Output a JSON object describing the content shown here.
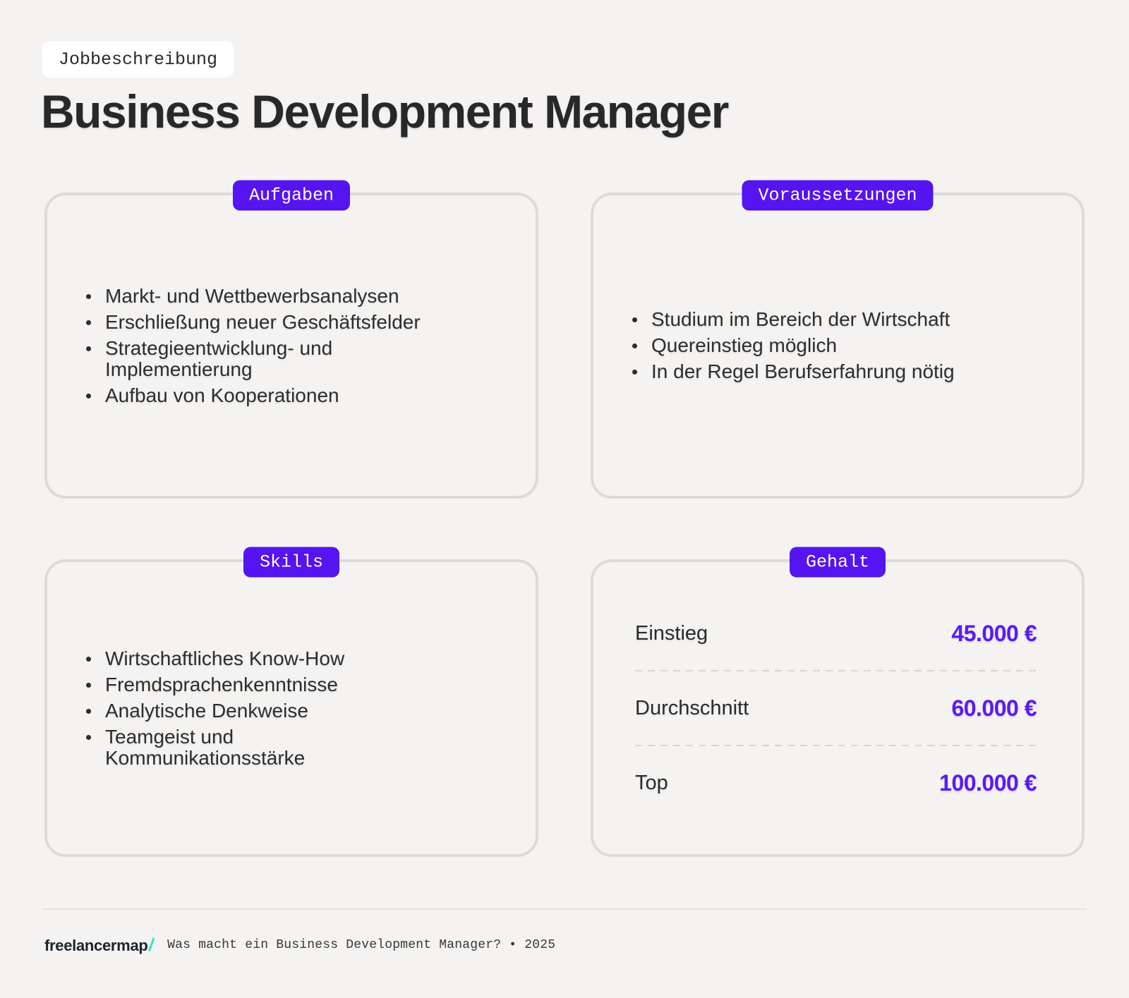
{
  "colors": {
    "background": "#f4f3f1",
    "accent_purple": "#5514f0",
    "value_purple": "#5a1bf2",
    "logo_teal": "#2ee3c3",
    "text_dark": "#28282a"
  },
  "header": {
    "eyebrow": "Jobbeschreibung",
    "title": "Business Development Manager"
  },
  "cards": [
    {
      "id": "aufgaben",
      "badge": "Aufgaben",
      "type": "bullets",
      "items": [
        "Markt- und Wettbewerbsanalysen",
        "Erschließung neuer Geschäftsfelder",
        "Strategieentwicklung- und\nImplementierung",
        "Aufbau von Kooperationen"
      ]
    },
    {
      "id": "voraussetzungen",
      "badge": "Voraussetzungen",
      "type": "bullets",
      "items": [
        "Studium im Bereich der Wirtschaft",
        "Quereinstieg möglich",
        "In der Regel Berufserfahrung nötig"
      ]
    },
    {
      "id": "skills",
      "badge": "Skills",
      "type": "bullets",
      "items": [
        "Wirtschaftliches Know-How",
        "Fremdsprachenkenntnisse",
        "Analytische Denkweise",
        "Teamgeist und\nKommunikationsstärke"
      ]
    },
    {
      "id": "gehalt",
      "badge": "Gehalt",
      "type": "salary",
      "rows": [
        {
          "label": "Einstieg",
          "value": "45.000 €"
        },
        {
          "label": "Durchschnitt",
          "value": "60.000 €"
        },
        {
          "label": "Top",
          "value": "100.000 €"
        }
      ]
    }
  ],
  "footer": {
    "logo_text": "freelancermap",
    "logo_slash": "/",
    "tagline": "Was macht ein Business Development Manager? • 2025"
  }
}
